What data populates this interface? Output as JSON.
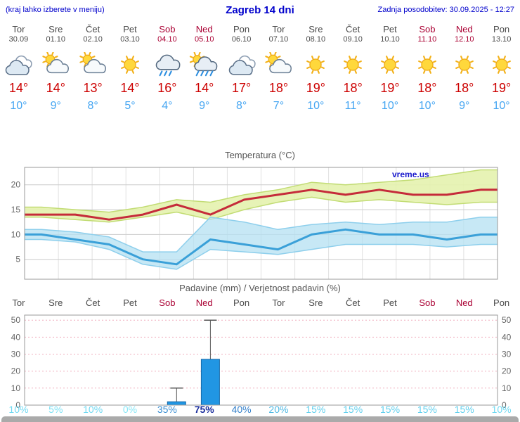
{
  "header": {
    "hint": "(kraj lahko izberete v meniju)",
    "title": "Zagreb 14 dni",
    "updated": "Zadnja posodobitev: 30.09.2025 - 12:27"
  },
  "titles": {
    "temp_chart": "Temperatura (°C)",
    "precip_chart": "Padavine (mm) / Verjetnost padavin (%)"
  },
  "colors": {
    "header_blue": "#0000cc",
    "weekday_text": "#4a4a4a",
    "weekend_text": "#aa0033",
    "tmax_text": "#cc0000",
    "tmin_text": "#46a6f2"
  },
  "watermark": "vreme.us",
  "days": [
    {
      "name": "Tor",
      "date": "30.09",
      "weekend": false,
      "icon": "cloudy",
      "tmax": 14,
      "tmin": 10,
      "prob": 10,
      "prob_color": "#6fd9f2"
    },
    {
      "name": "Sre",
      "date": "01.10",
      "weekend": false,
      "icon": "partly-cloudy",
      "tmax": 14,
      "tmin": 9,
      "prob": 5,
      "prob_color": "#7ee2f5"
    },
    {
      "name": "Čet",
      "date": "02.10",
      "weekend": false,
      "icon": "partly-cloudy",
      "tmax": 13,
      "tmin": 8,
      "prob": 10,
      "prob_color": "#6fd9f2"
    },
    {
      "name": "Pet",
      "date": "03.10",
      "weekend": false,
      "icon": "sunny",
      "tmax": 14,
      "tmin": 5,
      "prob": 0,
      "prob_color": "#86e7f7"
    },
    {
      "name": "Sob",
      "date": "04.10",
      "weekend": true,
      "icon": "rain",
      "tmax": 16,
      "tmin": 4,
      "prob": 35,
      "prob_color": "#3a8ed2"
    },
    {
      "name": "Ned",
      "date": "05.10",
      "weekend": true,
      "icon": "rain-sun",
      "tmax": 14,
      "tmin": 9,
      "prob": 75,
      "prob_color": "#1c2f9e"
    },
    {
      "name": "Pon",
      "date": "06.10",
      "weekend": false,
      "icon": "cloudy",
      "tmax": 17,
      "tmin": 8,
      "prob": 40,
      "prob_color": "#3480cb"
    },
    {
      "name": "Tor",
      "date": "07.10",
      "weekend": false,
      "icon": "partly-cloudy",
      "tmax": 18,
      "tmin": 7,
      "prob": 20,
      "prob_color": "#4fb9e4"
    },
    {
      "name": "Sre",
      "date": "08.10",
      "weekend": false,
      "icon": "sunny",
      "tmax": 19,
      "tmin": 10,
      "prob": 15,
      "prob_color": "#62d0ee"
    },
    {
      "name": "Čet",
      "date": "09.10",
      "weekend": false,
      "icon": "sunny",
      "tmax": 18,
      "tmin": 11,
      "prob": 15,
      "prob_color": "#62d0ee"
    },
    {
      "name": "Pet",
      "date": "10.10",
      "weekend": false,
      "icon": "sunny",
      "tmax": 19,
      "tmin": 10,
      "prob": 15,
      "prob_color": "#62d0ee"
    },
    {
      "name": "Sob",
      "date": "11.10",
      "weekend": true,
      "icon": "sunny",
      "tmax": 18,
      "tmin": 10,
      "prob": 15,
      "prob_color": "#62d0ee"
    },
    {
      "name": "Ned",
      "date": "12.10",
      "weekend": true,
      "icon": "sunny",
      "tmax": 18,
      "tmin": 9,
      "prob": 15,
      "prob_color": "#62d0ee"
    },
    {
      "name": "Pon",
      "date": "13.10",
      "weekend": false,
      "icon": "sunny",
      "tmax": 19,
      "tmin": 10,
      "prob": 10,
      "prob_color": "#6fd9f2"
    }
  ],
  "chart_data": [
    {
      "type": "line",
      "title": "Temperatura (°C)",
      "x_labels": [
        "Tor 30.09",
        "Sre 01.10",
        "Čet 02.10",
        "Pet 03.10",
        "Sob 04.10",
        "Ned 05.10",
        "Pon 06.10",
        "Tor 07.10",
        "Sre 08.10",
        "Čet 09.10",
        "Pet 10.10",
        "Sob 11.10",
        "Ned 12.10",
        "Pon 13.10"
      ],
      "ylim": [
        1,
        23.5
      ],
      "yticks": [
        5,
        10,
        15,
        20
      ],
      "grid": true,
      "watermark": "vreme.us",
      "series": [
        {
          "name": "max temperature",
          "color": "#c52b3a",
          "values": [
            14,
            14,
            13,
            14,
            16,
            14,
            17,
            18,
            19,
            18,
            19,
            18,
            18,
            19
          ]
        },
        {
          "name": "min temperature",
          "color": "#3aa0d8",
          "values": [
            10,
            9,
            8,
            5,
            4,
            9,
            8,
            7,
            10,
            11,
            10,
            10,
            9,
            10
          ]
        }
      ],
      "bands": [
        {
          "name": "max-temperature-range",
          "fill": "#e4f2ae",
          "opacity": 0.9,
          "edge": "#c2dc74",
          "upper": [
            15.5,
            15,
            14.5,
            15.5,
            17,
            16.5,
            18,
            19,
            20.5,
            20,
            20.5,
            21,
            22,
            23
          ],
          "lower": [
            13.5,
            13,
            12.5,
            13.5,
            14.5,
            13,
            15,
            16.5,
            17.5,
            16.5,
            17,
            16.5,
            16,
            16.5
          ]
        },
        {
          "name": "min-temperature-range",
          "fill": "#b4e0f2",
          "opacity": 0.75,
          "edge": "#8ecfec",
          "upper": [
            11,
            10.5,
            9.5,
            6.5,
            6.5,
            13.5,
            12.5,
            11,
            12,
            12.5,
            12,
            12.5,
            12.5,
            13.5
          ],
          "lower": [
            9,
            8.5,
            7,
            4,
            3,
            7,
            6.5,
            6,
            7,
            8,
            8,
            8,
            7.5,
            8
          ]
        }
      ]
    },
    {
      "type": "bar",
      "title": "Padavine (mm) / Verjetnost padavin (%)",
      "categories": [
        "Tor",
        "Sre",
        "Čet",
        "Pet",
        "Sob",
        "Ned",
        "Pon",
        "Tor",
        "Sre",
        "Čet",
        "Pet",
        "Sob",
        "Ned",
        "Pon"
      ],
      "values_mm": [
        0,
        0,
        0,
        0,
        2,
        27,
        0,
        0,
        0,
        0,
        0,
        0,
        0,
        0
      ],
      "whisker_max_mm": [
        0,
        0,
        0,
        0,
        10,
        50,
        0,
        0,
        0,
        0,
        0,
        0,
        0,
        0
      ],
      "probabilities_pct": [
        10,
        5,
        10,
        0,
        35,
        75,
        40,
        20,
        15,
        15,
        15,
        15,
        15,
        10
      ],
      "ylim": [
        0,
        53
      ],
      "yticks": [
        0,
        10,
        20,
        30,
        40,
        50
      ],
      "bar_fill": "#2196e3",
      "bar_stroke": "#1668a8",
      "grid_color": "#f0aebe"
    }
  ]
}
